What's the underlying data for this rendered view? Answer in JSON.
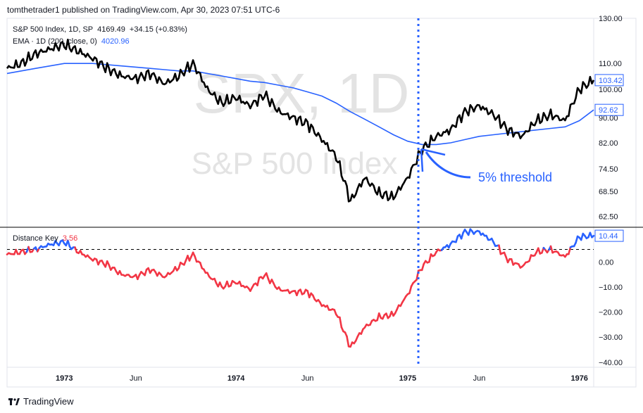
{
  "header": {
    "publisher_line": "tomthetrader1 published on TradingView.com, Apr 30, 2023 07:51 UTC-6"
  },
  "legend": {
    "price_line": "S&P 500 Index, 1D, SP",
    "price_value": "4169.49",
    "price_change": "+34.15 (+0.83%)",
    "ema_label": "EMA · 1D (200, close, 0)",
    "ema_value": "4020.96",
    "osc_label": "Distance Key",
    "osc_value": "3.56"
  },
  "watermark": {
    "symbol": "SPX, 1D",
    "name": "S&P 500 Index"
  },
  "annotation": {
    "text": "5% threshold"
  },
  "footer": {
    "brand": "TradingView"
  },
  "colors": {
    "price": "#000000",
    "ema": "#2962ff",
    "osc_above": "#2962ff",
    "osc_below": "#f23645",
    "axis_text": "#131722",
    "grid_divider": "#000000",
    "annotation": "#2962ff",
    "badge_text": "#2962ff"
  },
  "chart_data": [
    {
      "type": "line",
      "title": "S&P 500 Index, 1D, SP",
      "x": [
        "1972-09",
        "1972-10",
        "1972-11",
        "1972-12",
        "1973-01",
        "1973-02",
        "1973-03",
        "1973-04",
        "1973-05",
        "1973-06",
        "1973-07",
        "1973-08",
        "1973-09",
        "1973-10",
        "1973-11",
        "1973-12",
        "1974-01",
        "1974-02",
        "1974-03",
        "1974-04",
        "1974-05",
        "1974-06",
        "1974-07",
        "1974-08",
        "1974-09",
        "1974-10",
        "1974-11",
        "1974-12",
        "1975-01",
        "1975-02",
        "1975-03",
        "1975-04",
        "1975-05",
        "1975-06",
        "1975-07",
        "1975-08",
        "1975-09",
        "1975-10",
        "1975-11",
        "1975-12",
        "1976-01",
        "1976-02"
      ],
      "series": [
        {
          "name": "S&P 500 Index",
          "values": [
            108,
            110,
            114,
            116,
            118,
            115,
            112,
            108,
            105,
            104,
            106,
            102,
            105,
            110,
            100,
            95,
            97,
            94,
            98,
            92,
            90,
            88,
            83,
            78,
            66,
            72,
            68,
            67,
            72,
            80,
            84,
            86,
            92,
            94,
            91,
            86,
            84,
            89,
            91,
            89,
            100,
            103.42
          ]
        },
        {
          "name": "EMA · 1D (200, close, 0)",
          "values": [
            106,
            107,
            108,
            109,
            110,
            110,
            110,
            109.5,
            109,
            108.5,
            108,
            107.5,
            107,
            107,
            106,
            105,
            104,
            103,
            102.5,
            101.5,
            100.5,
            99,
            97.5,
            95,
            92,
            89.5,
            87,
            84.5,
            82.5,
            81.5,
            81.5,
            82,
            83,
            84,
            84.5,
            85,
            85.5,
            86,
            86.5,
            87,
            89,
            92.62
          ]
        }
      ],
      "y_ticks": [
        "130.00",
        "110.00",
        "100.00",
        "90.00",
        "82.00",
        "74.50",
        "68.50",
        "62.50"
      ],
      "ylim": [
        60,
        130
      ],
      "log_scale": true,
      "last_value_labels": [
        "103.42",
        "92.62"
      ],
      "x_tick_labels": [
        "1973",
        "Jun",
        "1974",
        "Jun",
        "1975",
        "Jun",
        "1976"
      ],
      "annotations": [
        "5% threshold"
      ]
    },
    {
      "type": "line",
      "title": "Distance Key",
      "x": [
        "1972-09",
        "1972-10",
        "1972-11",
        "1972-12",
        "1973-01",
        "1973-02",
        "1973-03",
        "1973-04",
        "1973-05",
        "1973-06",
        "1973-07",
        "1973-08",
        "1973-09",
        "1973-10",
        "1973-11",
        "1973-12",
        "1974-01",
        "1974-02",
        "1974-03",
        "1974-04",
        "1974-05",
        "1974-06",
        "1974-07",
        "1974-08",
        "1974-09",
        "1974-10",
        "1974-11",
        "1974-12",
        "1975-01",
        "1975-02",
        "1975-03",
        "1975-04",
        "1975-05",
        "1975-06",
        "1975-07",
        "1975-08",
        "1975-09",
        "1975-10",
        "1975-11",
        "1975-12",
        "1976-01",
        "1976-02"
      ],
      "series": [
        {
          "name": "Distance Key",
          "values": [
            3,
            4,
            5,
            7,
            8,
            4,
            1,
            -1,
            -5,
            -6,
            -3,
            -6,
            -2,
            3,
            -5,
            -10,
            -8,
            -11,
            -5,
            -11,
            -12,
            -12,
            -17,
            -20,
            -34,
            -26,
            -22,
            -21,
            -13,
            -2,
            4,
            7,
            12,
            12,
            8,
            1,
            -2,
            4,
            5,
            2,
            10,
            10.44
          ]
        }
      ],
      "threshold": 5,
      "y_ticks": [
        "0.00",
        "−10.00",
        "−20.00",
        "−30.00",
        "−40.00"
      ],
      "ylim": [
        -42,
        13
      ],
      "last_value_labels": [
        "10.44"
      ],
      "x_tick_labels": [
        "1973",
        "Jun",
        "1974",
        "Jun",
        "1975",
        "Jun",
        "1976"
      ]
    }
  ]
}
